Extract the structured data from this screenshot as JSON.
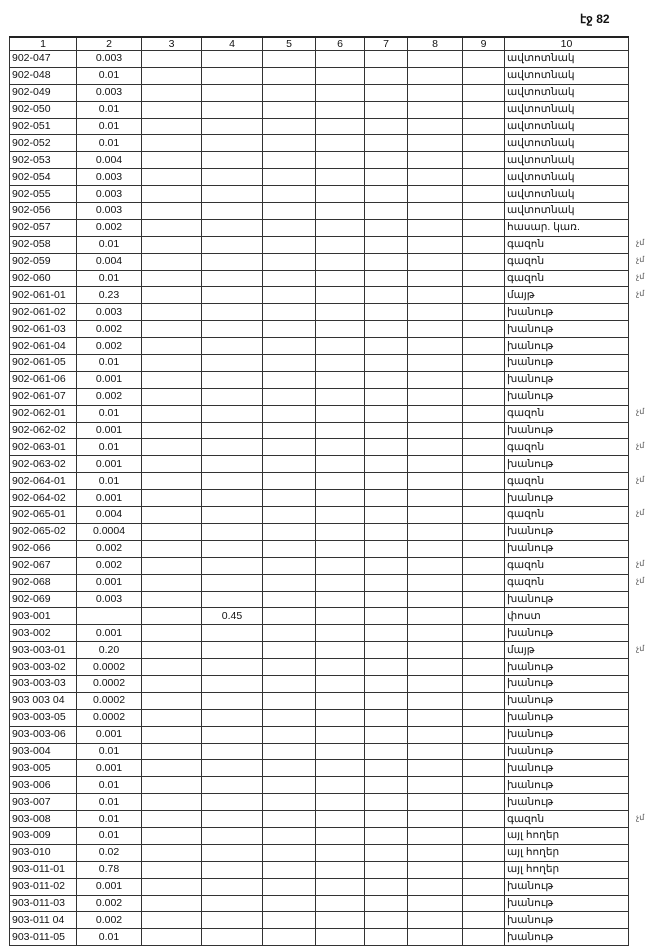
{
  "page_number": "էջ 82",
  "columns": [
    "1",
    "2",
    "3",
    "4",
    "5",
    "6",
    "7",
    "8",
    "9",
    "10"
  ],
  "rows": [
    {
      "code": "902-047",
      "area": "0.003",
      "c4": "",
      "use": "ավտոտնակ",
      "mark": ""
    },
    {
      "code": "902-048",
      "area": "0.01",
      "c4": "",
      "use": "ավտոտնակ",
      "mark": ""
    },
    {
      "code": "902-049",
      "area": "0.003",
      "c4": "",
      "use": "ավտոտնակ",
      "mark": ""
    },
    {
      "code": "902-050",
      "area": "0.01",
      "c4": "",
      "use": "ավտոտնակ",
      "mark": ""
    },
    {
      "code": "902-051",
      "area": "0.01",
      "c4": "",
      "use": "ավտոտնակ",
      "mark": ""
    },
    {
      "code": "902-052",
      "area": "0.01",
      "c4": "",
      "use": "ավտոտնակ",
      "mark": ""
    },
    {
      "code": "902-053",
      "area": "0.004",
      "c4": "",
      "use": "ավտոտնակ",
      "mark": ""
    },
    {
      "code": "902-054",
      "area": "0.003",
      "c4": "",
      "use": "ավտոտնակ",
      "mark": ""
    },
    {
      "code": "902-055",
      "area": "0.003",
      "c4": "",
      "use": "ավտոտնակ",
      "mark": ""
    },
    {
      "code": "902-056",
      "area": "0.003",
      "c4": "",
      "use": "ավտոտնակ",
      "mark": ""
    },
    {
      "code": "902-057",
      "area": "0.002",
      "c4": "",
      "use": "հասար. կառ.",
      "mark": ""
    },
    {
      "code": "902-058",
      "area": "0.01",
      "c4": "",
      "use": "գազոն",
      "mark": "չմ"
    },
    {
      "code": "902-059",
      "area": "0.004",
      "c4": "",
      "use": "գազոն",
      "mark": "չմ"
    },
    {
      "code": "902-060",
      "area": "0.01",
      "c4": "",
      "use": "գազոն",
      "mark": "չմ"
    },
    {
      "code": "902-061-01",
      "area": "0.23",
      "c4": "",
      "use": "մայթ",
      "mark": "չմ"
    },
    {
      "code": "902-061-02",
      "area": "0.003",
      "c4": "",
      "use": "խանութ",
      "mark": ""
    },
    {
      "code": "902-061-03",
      "area": "0.002",
      "c4": "",
      "use": "խանութ",
      "mark": ""
    },
    {
      "code": "902-061-04",
      "area": "0.002",
      "c4": "",
      "use": "խանութ",
      "mark": ""
    },
    {
      "code": "902-061-05",
      "area": "0.01",
      "c4": "",
      "use": "խանութ",
      "mark": ""
    },
    {
      "code": "902-061-06",
      "area": "0.001",
      "c4": "",
      "use": "խանութ",
      "mark": ""
    },
    {
      "code": "902-061-07",
      "area": "0.002",
      "c4": "",
      "use": "խանութ",
      "mark": ""
    },
    {
      "code": "902-062-01",
      "area": "0.01",
      "c4": "",
      "use": "գազոն",
      "mark": "չմ"
    },
    {
      "code": "902-062-02",
      "area": "0.001",
      "c4": "",
      "use": "խանութ",
      "mark": ""
    },
    {
      "code": "902-063-01",
      "area": "0.01",
      "c4": "",
      "use": "գազոն",
      "mark": "չմ"
    },
    {
      "code": "902-063-02",
      "area": "0.001",
      "c4": "",
      "use": "խանութ",
      "mark": ""
    },
    {
      "code": "902-064-01",
      "area": "0.01",
      "c4": "",
      "use": "գազոն",
      "mark": "չմ"
    },
    {
      "code": "902-064-02",
      "area": "0.001",
      "c4": "",
      "use": "խանութ",
      "mark": ""
    },
    {
      "code": "902-065-01",
      "area": "0.004",
      "c4": "",
      "use": "գազոն",
      "mark": "չմ"
    },
    {
      "code": "902-065-02",
      "area": "0.0004",
      "c4": "",
      "use": "խանութ",
      "mark": ""
    },
    {
      "code": "902-066",
      "area": "0.002",
      "c4": "",
      "use": "խանութ",
      "mark": ""
    },
    {
      "code": "902-067",
      "area": "0.002",
      "c4": "",
      "use": "գազոն",
      "mark": "չմ"
    },
    {
      "code": "902-068",
      "area": "0.001",
      "c4": "",
      "use": "գազոն",
      "mark": "չմ"
    },
    {
      "code": "902-069",
      "area": "0.003",
      "c4": "",
      "use": "խանութ",
      "mark": ""
    },
    {
      "code": "903-001",
      "area": "",
      "c4": "0.45",
      "use": "փոստ",
      "mark": ""
    },
    {
      "code": "903-002",
      "area": "0.001",
      "c4": "",
      "use": "խանութ",
      "mark": ""
    },
    {
      "code": "903-003-01",
      "area": "0.20",
      "c4": "",
      "use": "մայթ",
      "mark": "չմ"
    },
    {
      "code": "903-003-02",
      "area": "0.0002",
      "c4": "",
      "use": "խանութ",
      "mark": ""
    },
    {
      "code": "903-003-03",
      "area": "0.0002",
      "c4": "",
      "use": "խանութ",
      "mark": ""
    },
    {
      "code": "903 003 04",
      "area": "0.0002",
      "c4": "",
      "use": "խանութ",
      "mark": ""
    },
    {
      "code": "903-003-05",
      "area": "0.0002",
      "c4": "",
      "use": "խանութ",
      "mark": ""
    },
    {
      "code": "903-003-06",
      "area": "0.001",
      "c4": "",
      "use": "խանութ",
      "mark": ""
    },
    {
      "code": "903-004",
      "area": "0.01",
      "c4": "",
      "use": "խանութ",
      "mark": ""
    },
    {
      "code": "903-005",
      "area": "0.001",
      "c4": "",
      "use": "խանութ",
      "mark": ""
    },
    {
      "code": "903-006",
      "area": "0.01",
      "c4": "",
      "use": "խանութ",
      "mark": ""
    },
    {
      "code": "903-007",
      "area": "0.01",
      "c4": "",
      "use": "խանութ",
      "mark": ""
    },
    {
      "code": "903-008",
      "area": "0.01",
      "c4": "",
      "use": "գազոն",
      "mark": "չմ"
    },
    {
      "code": "903-009",
      "area": "0.01",
      "c4": "",
      "use": "այլ հողեր",
      "mark": ""
    },
    {
      "code": "903-010",
      "area": "0.02",
      "c4": "",
      "use": "այլ հողեր",
      "mark": ""
    },
    {
      "code": "903-011-01",
      "area": "0.78",
      "c4": "",
      "use": "այլ հողեր",
      "mark": ""
    },
    {
      "code": "903-011-02",
      "area": "0.001",
      "c4": "",
      "use": "խանութ",
      "mark": ""
    },
    {
      "code": "903-011-03",
      "area": "0.002",
      "c4": "",
      "use": "խանութ",
      "mark": ""
    },
    {
      "code": "903-011 04",
      "area": "0.002",
      "c4": "",
      "use": "խանութ",
      "mark": ""
    },
    {
      "code": "903-011-05",
      "area": "0.01",
      "c4": "",
      "use": "խանութ",
      "mark": ""
    }
  ]
}
